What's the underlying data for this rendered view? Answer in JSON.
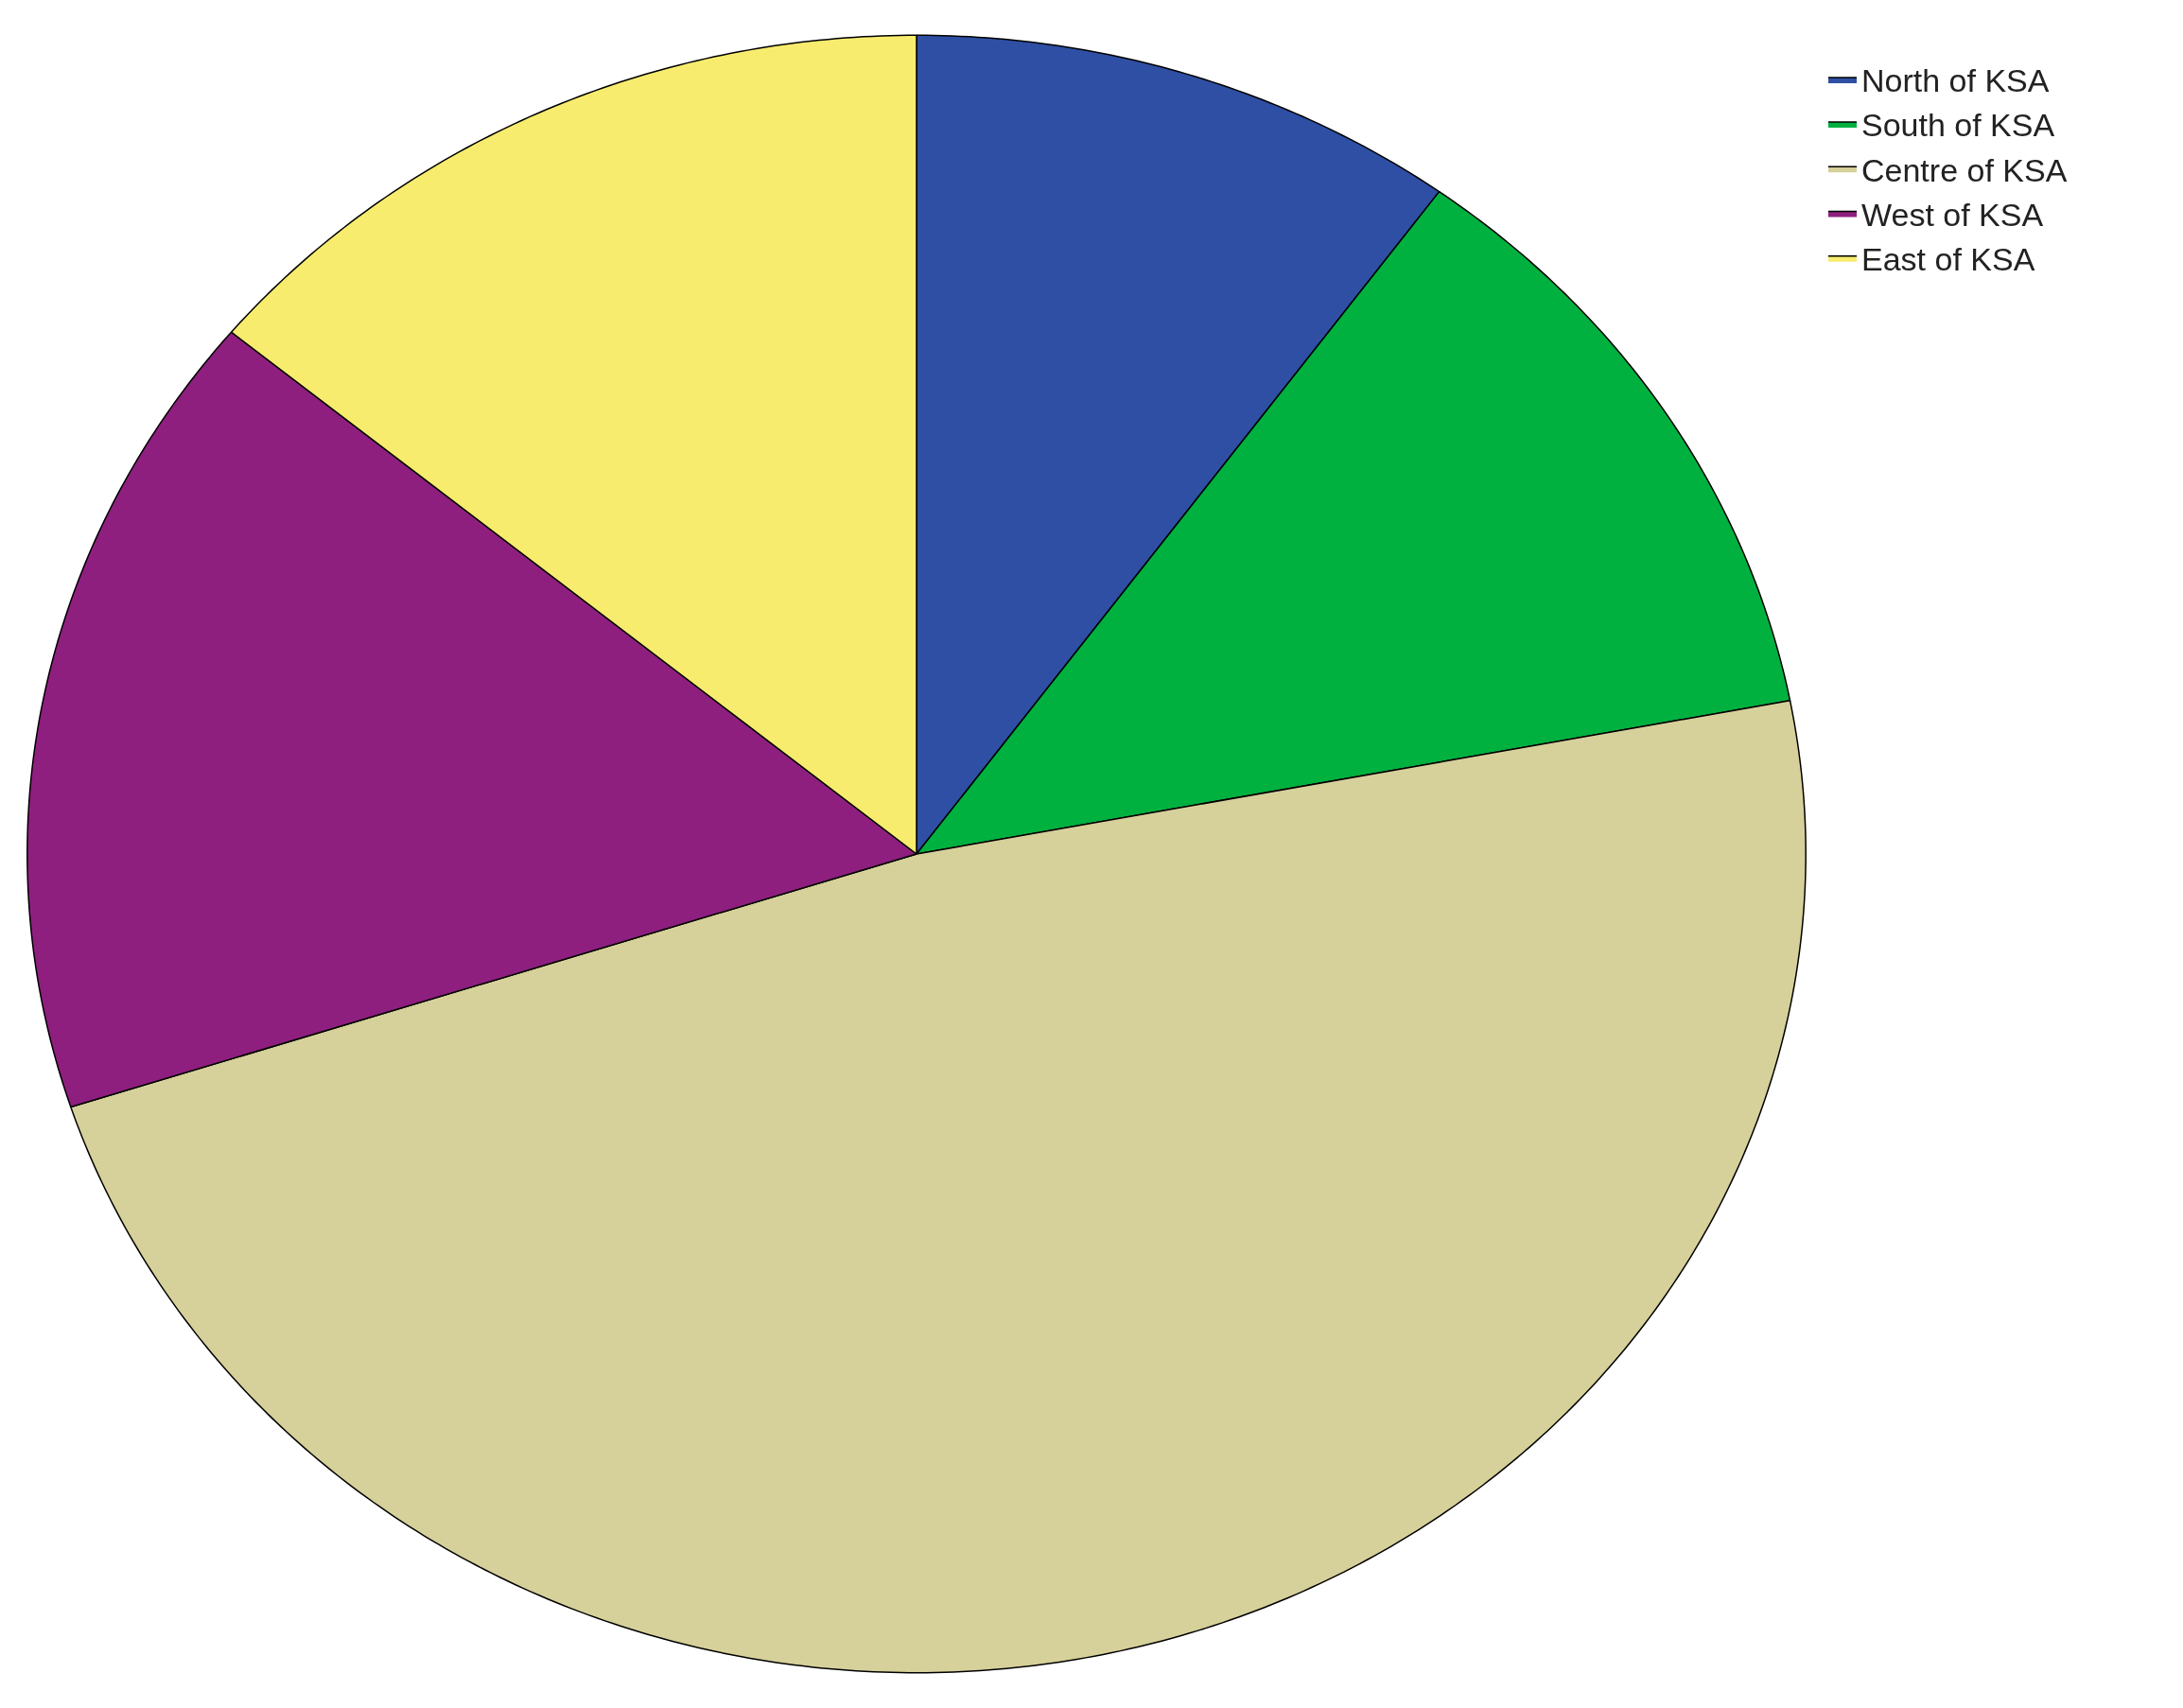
{
  "chart_data": {
    "type": "pie",
    "categories": [
      "North of KSA",
      "South of KSA",
      "Centre of KSA",
      "West of KSA",
      "East of KSA"
    ],
    "values": [
      10,
      12,
      48,
      16,
      14
    ],
    "colors": [
      "#2e4fa3",
      "#00b140",
      "#d6d09a",
      "#8e1f7f",
      "#f7ec6e"
    ],
    "legend": "top right"
  }
}
